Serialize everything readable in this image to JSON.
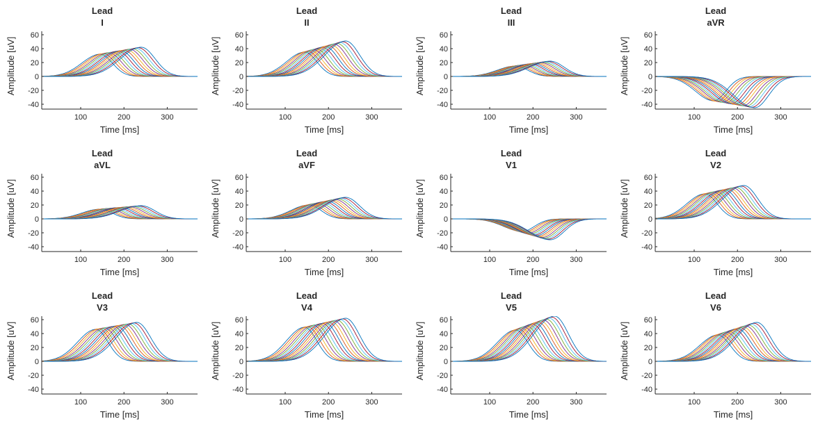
{
  "chart_data": [
    {
      "type": "line",
      "title": "Lead",
      "subtitle": "I",
      "xlabel": "Time [ms]",
      "ylabel": "Amplitude [uV]",
      "xlim": [
        10,
        370
      ],
      "ylim": [
        -47,
        65
      ],
      "xticks": [
        100,
        200,
        300
      ],
      "yticks": [
        -40,
        -20,
        0,
        20,
        40,
        60
      ],
      "grid": false,
      "legend": "none",
      "num_series": 15,
      "peak_range": [
        32,
        42
      ],
      "peak_time_range": [
        145,
        240
      ]
    },
    {
      "type": "line",
      "title": "Lead",
      "subtitle": "II",
      "xlabel": "Time [ms]",
      "ylabel": "Amplitude [uV]",
      "xlim": [
        10,
        370
      ],
      "ylim": [
        -47,
        65
      ],
      "xticks": [
        100,
        200,
        300
      ],
      "yticks": [
        -40,
        -20,
        0,
        20,
        40,
        60
      ],
      "grid": false,
      "legend": "none",
      "num_series": 15,
      "peak_range": [
        35,
        51
      ],
      "peak_time_range": [
        145,
        240
      ]
    },
    {
      "type": "line",
      "title": "Lead",
      "subtitle": "III",
      "xlabel": "Time [ms]",
      "ylabel": "Amplitude [uV]",
      "xlim": [
        10,
        370
      ],
      "ylim": [
        -47,
        65
      ],
      "xticks": [
        100,
        200,
        300
      ],
      "yticks": [
        -40,
        -20,
        0,
        20,
        40,
        60
      ],
      "grid": false,
      "legend": "none",
      "num_series": 15,
      "peak_range": [
        15,
        22
      ],
      "peak_time_range": [
        160,
        240
      ]
    },
    {
      "type": "line",
      "title": "Lead",
      "subtitle": "aVR",
      "xlabel": "Time [ms]",
      "ylabel": "Amplitude [uV]",
      "xlim": [
        10,
        370
      ],
      "ylim": [
        -47,
        65
      ],
      "xticks": [
        100,
        200,
        300
      ],
      "yticks": [
        -40,
        -20,
        0,
        20,
        40,
        60
      ],
      "grid": false,
      "legend": "none",
      "num_series": 15,
      "peak_range": [
        -35,
        -45
      ],
      "peak_time_range": [
        145,
        240
      ]
    },
    {
      "type": "line",
      "title": "Lead",
      "subtitle": "aVL",
      "xlabel": "Time [ms]",
      "ylabel": "Amplitude [uV]",
      "xlim": [
        10,
        370
      ],
      "ylim": [
        -47,
        65
      ],
      "xticks": [
        100,
        200,
        300
      ],
      "yticks": [
        -40,
        -20,
        0,
        20,
        40,
        60
      ],
      "grid": false,
      "legend": "none",
      "num_series": 15,
      "peak_range": [
        14,
        19
      ],
      "peak_time_range": [
        145,
        240
      ]
    },
    {
      "type": "line",
      "title": "Lead",
      "subtitle": "aVF",
      "xlabel": "Time [ms]",
      "ylabel": "Amplitude [uV]",
      "xlim": [
        10,
        370
      ],
      "ylim": [
        -47,
        65
      ],
      "xticks": [
        100,
        200,
        300
      ],
      "yticks": [
        -40,
        -20,
        0,
        20,
        40,
        60
      ],
      "grid": false,
      "legend": "none",
      "num_series": 15,
      "peak_range": [
        20,
        31
      ],
      "peak_time_range": [
        155,
        240
      ]
    },
    {
      "type": "line",
      "title": "Lead",
      "subtitle": "V1",
      "xlabel": "Time [ms]",
      "ylabel": "Amplitude [uV]",
      "xlim": [
        10,
        370
      ],
      "ylim": [
        -47,
        65
      ],
      "xticks": [
        100,
        200,
        300
      ],
      "yticks": [
        -40,
        -20,
        0,
        20,
        40,
        60
      ],
      "grid": false,
      "legend": "none",
      "num_series": 15,
      "peak_range": [
        -18,
        -30
      ],
      "peak_time_range": [
        175,
        240
      ]
    },
    {
      "type": "line",
      "title": "Lead",
      "subtitle": "V2",
      "xlabel": "Time [ms]",
      "ylabel": "Amplitude [uV]",
      "xlim": [
        10,
        370
      ],
      "ylim": [
        -47,
        65
      ],
      "xticks": [
        100,
        200,
        300
      ],
      "yticks": [
        -40,
        -20,
        0,
        20,
        40,
        60
      ],
      "grid": false,
      "legend": "none",
      "num_series": 15,
      "peak_range": [
        36,
        48
      ],
      "peak_time_range": [
        125,
        215
      ]
    },
    {
      "type": "line",
      "title": "Lead",
      "subtitle": "V3",
      "xlabel": "Time [ms]",
      "ylabel": "Amplitude [uV]",
      "xlim": [
        10,
        370
      ],
      "ylim": [
        -47,
        65
      ],
      "xticks": [
        100,
        200,
        300
      ],
      "yticks": [
        -40,
        -20,
        0,
        20,
        40,
        60
      ],
      "grid": false,
      "legend": "none",
      "num_series": 15,
      "peak_range": [
        46,
        56
      ],
      "peak_time_range": [
        135,
        230
      ]
    },
    {
      "type": "line",
      "title": "Lead",
      "subtitle": "V4",
      "xlabel": "Time [ms]",
      "ylabel": "Amplitude [uV]",
      "xlim": [
        10,
        370
      ],
      "ylim": [
        -47,
        65
      ],
      "xticks": [
        100,
        200,
        300
      ],
      "yticks": [
        -40,
        -20,
        0,
        20,
        40,
        60
      ],
      "grid": false,
      "legend": "none",
      "num_series": 15,
      "peak_range": [
        49,
        62
      ],
      "peak_time_range": [
        145,
        240
      ]
    },
    {
      "type": "line",
      "title": "Lead",
      "subtitle": "V5",
      "xlabel": "Time [ms]",
      "ylabel": "Amplitude [uV]",
      "xlim": [
        10,
        370
      ],
      "ylim": [
        -47,
        65
      ],
      "xticks": [
        100,
        200,
        300
      ],
      "yticks": [
        -40,
        -20,
        0,
        20,
        40,
        60
      ],
      "grid": false,
      "legend": "none",
      "num_series": 15,
      "peak_range": [
        45,
        65
      ],
      "peak_time_range": [
        160,
        250
      ]
    },
    {
      "type": "line",
      "title": "Lead",
      "subtitle": "V6",
      "xlabel": "Time [ms]",
      "ylabel": "Amplitude [uV]",
      "xlim": [
        10,
        370
      ],
      "ylim": [
        -47,
        65
      ],
      "xticks": [
        100,
        200,
        300
      ],
      "yticks": [
        -40,
        -20,
        0,
        20,
        40,
        60
      ],
      "grid": false,
      "legend": "none",
      "num_series": 15,
      "peak_range": [
        38,
        56
      ],
      "peak_time_range": [
        155,
        245
      ]
    }
  ],
  "colors": [
    "#0072BD",
    "#D95319",
    "#EDB120",
    "#7E2F8E",
    "#77AC30",
    "#4DBEEE",
    "#A2142F"
  ]
}
